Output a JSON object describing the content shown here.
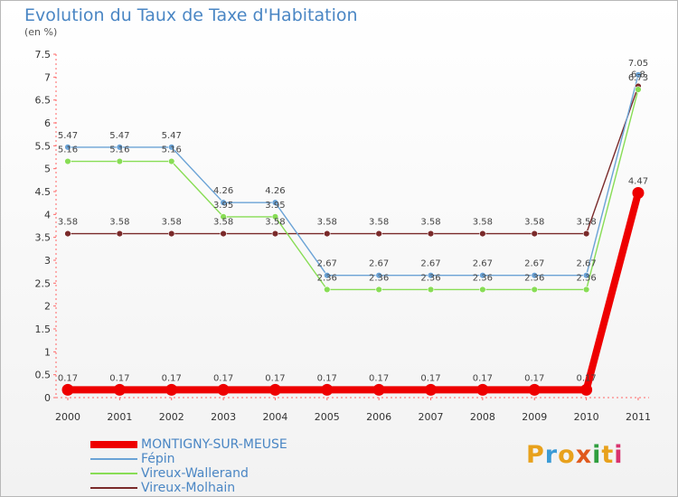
{
  "title": "Evolution du Taux de Taxe d'Habitation",
  "subtitle": "(en %)",
  "logo": {
    "text": "Proxiti",
    "colors": [
      "#e8a11c",
      "#3b9bd6",
      "#e8a11c",
      "#e05a1e",
      "#2f9e3e",
      "#e8a11c",
      "#d9326e"
    ]
  },
  "chart_data": {
    "type": "line",
    "x": [
      "2000",
      "2001",
      "2002",
      "2003",
      "2004",
      "2005",
      "2006",
      "2007",
      "2008",
      "2009",
      "2010",
      "2011"
    ],
    "ylim": [
      0,
      7.5
    ],
    "yticks": [
      "0",
      "0.5",
      "1",
      "1.5",
      "2",
      "2.5",
      "3",
      "3.5",
      "4",
      "4.5",
      "5",
      "5.5",
      "6",
      "6.5",
      "7",
      "7.5"
    ],
    "grid": false,
    "legend_position": "bottom-left",
    "series": [
      {
        "name": "MONTIGNY-SUR-MEUSE",
        "color": "#ee0000",
        "values": [
          0.17,
          0.17,
          0.17,
          0.17,
          0.17,
          0.17,
          0.17,
          0.17,
          0.17,
          0.17,
          0.17,
          4.47
        ],
        "labels": [
          "0.17",
          "0.17",
          "0.17",
          "0.17",
          "0.17",
          "0.17",
          "0.17",
          "0.17",
          "0.17",
          "0.17",
          "0.17",
          "4.47"
        ]
      },
      {
        "name": "Fépin",
        "color": "#6ba3d6",
        "values": [
          5.47,
          5.47,
          5.47,
          4.26,
          4.26,
          2.67,
          2.67,
          2.67,
          2.67,
          2.67,
          2.67,
          7.05
        ],
        "labels": [
          "5.47",
          "5.47",
          "5.47",
          "4.26",
          "4.26",
          "2.67",
          "2.67",
          "2.67",
          "2.67",
          "2.67",
          "2.67",
          "7.05"
        ]
      },
      {
        "name": "Vireux-Wallerand",
        "color": "#88dd55",
        "values": [
          5.16,
          5.16,
          5.16,
          3.95,
          3.95,
          2.36,
          2.36,
          2.36,
          2.36,
          2.36,
          2.36,
          6.73
        ],
        "labels": [
          "5.16",
          "5.16",
          "5.16",
          "3.95",
          "3.95",
          "2.36",
          "2.36",
          "2.36",
          "2.36",
          "2.36",
          "2.36",
          "6.73"
        ]
      },
      {
        "name": "Vireux-Molhain",
        "color": "#7a2a2a",
        "values": [
          3.58,
          3.58,
          3.58,
          3.58,
          3.58,
          3.58,
          3.58,
          3.58,
          3.58,
          3.58,
          3.58,
          6.8
        ],
        "labels": [
          "3.58",
          "3.58",
          "3.58",
          "3.58",
          "3.58",
          "3.58",
          "3.58",
          "3.58",
          "3.58",
          "3.58",
          "3.58",
          "6.8"
        ]
      }
    ]
  }
}
